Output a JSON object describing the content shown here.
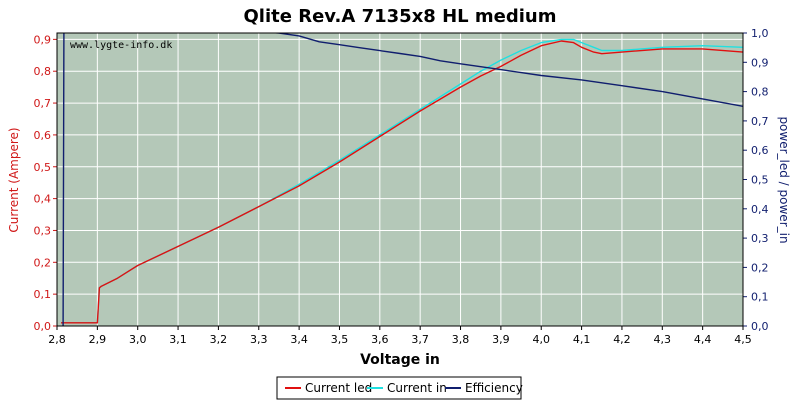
{
  "chart_data": {
    "type": "line",
    "title": "Qlite Rev.A 7135x8 HL medium",
    "watermark": "www.lygte-info.dk",
    "xlabel": "Voltage in",
    "ylabel_left": "Current (Ampere)",
    "ylabel_right": "power_led / power_in",
    "xlim": [
      2.8,
      4.5
    ],
    "ylim_left": [
      0.0,
      0.92
    ],
    "ylim_right": [
      0.0,
      1.0
    ],
    "x_ticks": [
      "2,8",
      "2,9",
      "3,0",
      "3,1",
      "3,2",
      "3,3",
      "3,4",
      "3,5",
      "3,6",
      "3,7",
      "3,8",
      "3,9",
      "4,0",
      "4,1",
      "4,2",
      "4,3",
      "4,4",
      "4,5"
    ],
    "y_left_ticks": [
      "0,0",
      "0,1",
      "0,2",
      "0,3",
      "0,4",
      "0,5",
      "0,6",
      "0,7",
      "0,8",
      "0,9"
    ],
    "y_right_ticks": [
      "0,0",
      "0,1",
      "0,2",
      "0,3",
      "0,4",
      "0,5",
      "0,6",
      "0,7",
      "0,8",
      "0,9",
      "1,0"
    ],
    "grid": true,
    "legend_position": "bottom-center",
    "colors": {
      "plot_bg": "#b4c8b8",
      "grid": "#ffffff",
      "current_led": "#e01010",
      "current_in": "#20e0e0",
      "efficiency": "#101e6e",
      "left_axis": "#d01818",
      "right_axis": "#101e6e"
    },
    "series": [
      {
        "name": "Current led",
        "axis": "left",
        "x": [
          2.81,
          2.85,
          2.9,
          2.905,
          2.91,
          2.95,
          3.0,
          3.1,
          3.2,
          3.3,
          3.4,
          3.5,
          3.6,
          3.7,
          3.8,
          3.85,
          3.9,
          3.95,
          4.0,
          4.05,
          4.08,
          4.1,
          4.13,
          4.15,
          4.2,
          4.3,
          4.4,
          4.5
        ],
        "y": [
          0.01,
          0.01,
          0.01,
          0.12,
          0.125,
          0.15,
          0.19,
          0.25,
          0.31,
          0.375,
          0.44,
          0.515,
          0.595,
          0.675,
          0.75,
          0.785,
          0.815,
          0.85,
          0.88,
          0.895,
          0.89,
          0.875,
          0.86,
          0.855,
          0.86,
          0.87,
          0.87,
          0.86
        ]
      },
      {
        "name": "Current in",
        "axis": "left",
        "x": [
          2.81,
          2.85,
          2.9,
          2.905,
          2.91,
          2.95,
          3.0,
          3.1,
          3.2,
          3.3,
          3.4,
          3.5,
          3.6,
          3.7,
          3.8,
          3.85,
          3.9,
          3.95,
          4.0,
          4.05,
          4.08,
          4.1,
          4.13,
          4.15,
          4.2,
          4.3,
          4.4,
          4.5
        ],
        "y": [
          0.01,
          0.01,
          0.01,
          0.12,
          0.125,
          0.15,
          0.19,
          0.25,
          0.31,
          0.375,
          0.445,
          0.52,
          0.6,
          0.68,
          0.76,
          0.8,
          0.835,
          0.865,
          0.89,
          0.9,
          0.9,
          0.89,
          0.875,
          0.865,
          0.865,
          0.875,
          0.88,
          0.875
        ]
      },
      {
        "name": "Efficiency",
        "axis": "right",
        "x": [
          2.815,
          2.816,
          2.817,
          2.82,
          3.35,
          3.4,
          3.45,
          3.5,
          3.55,
          3.6,
          3.65,
          3.7,
          3.75,
          3.8,
          3.85,
          3.9,
          3.95,
          4.0,
          4.1,
          4.2,
          4.3,
          4.4,
          4.5
        ],
        "y": [
          0.0,
          0.5,
          1.0,
          1.05,
          1.0,
          0.99,
          0.97,
          0.96,
          0.95,
          0.94,
          0.93,
          0.92,
          0.905,
          0.895,
          0.885,
          0.875,
          0.865,
          0.855,
          0.84,
          0.82,
          0.8,
          0.775,
          0.75
        ]
      }
    ]
  }
}
